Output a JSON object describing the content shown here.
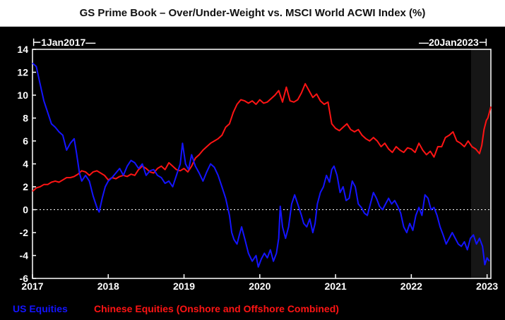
{
  "chart_data": {
    "type": "line",
    "title": "GS Prime Book – Over/Under-Weight vs. MSCI World ACWI Index (%)",
    "start_label": "1Jan2017",
    "end_label": "20Jan2023",
    "x_range": [
      2017.0,
      2023.05
    ],
    "x_ticks": [
      "2017",
      "2018",
      "2019",
      "2020",
      "2021",
      "2022",
      "2023"
    ],
    "ylim": [
      -6,
      14
    ],
    "y_ticks": [
      14,
      12,
      10,
      8,
      6,
      4,
      2,
      0,
      -2,
      -4,
      -6
    ],
    "zero_line": "dotted",
    "grid": false,
    "legend_position": "bottom-left",
    "series": [
      {
        "name": "US Equities",
        "color": "#1414ff",
        "points": [
          [
            2017.0,
            12.8
          ],
          [
            2017.05,
            12.5
          ],
          [
            2017.1,
            11.0
          ],
          [
            2017.15,
            9.5
          ],
          [
            2017.2,
            8.5
          ],
          [
            2017.25,
            7.5
          ],
          [
            2017.3,
            7.2
          ],
          [
            2017.35,
            6.8
          ],
          [
            2017.4,
            6.5
          ],
          [
            2017.45,
            5.2
          ],
          [
            2017.5,
            5.8
          ],
          [
            2017.55,
            6.2
          ],
          [
            2017.58,
            5.0
          ],
          [
            2017.62,
            3.2
          ],
          [
            2017.65,
            2.5
          ],
          [
            2017.7,
            3.0
          ],
          [
            2017.75,
            2.5
          ],
          [
            2017.8,
            1.2
          ],
          [
            2017.85,
            0.2
          ],
          [
            2017.88,
            -0.2
          ],
          [
            2017.92,
            1.0
          ],
          [
            2017.96,
            2.0
          ],
          [
            2018.0,
            2.5
          ],
          [
            2018.05,
            2.8
          ],
          [
            2018.1,
            3.2
          ],
          [
            2018.15,
            3.6
          ],
          [
            2018.2,
            3.0
          ],
          [
            2018.25,
            3.8
          ],
          [
            2018.3,
            4.3
          ],
          [
            2018.35,
            4.1
          ],
          [
            2018.4,
            3.6
          ],
          [
            2018.45,
            4.0
          ],
          [
            2018.5,
            3.0
          ],
          [
            2018.55,
            3.4
          ],
          [
            2018.6,
            3.5
          ],
          [
            2018.65,
            3.0
          ],
          [
            2018.7,
            2.8
          ],
          [
            2018.75,
            2.3
          ],
          [
            2018.8,
            2.5
          ],
          [
            2018.85,
            2.0
          ],
          [
            2018.9,
            3.0
          ],
          [
            2018.95,
            4.0
          ],
          [
            2018.98,
            5.8
          ],
          [
            2019.02,
            4.0
          ],
          [
            2019.06,
            3.5
          ],
          [
            2019.1,
            4.8
          ],
          [
            2019.15,
            3.8
          ],
          [
            2019.2,
            3.2
          ],
          [
            2019.25,
            2.5
          ],
          [
            2019.3,
            3.3
          ],
          [
            2019.35,
            4.0
          ],
          [
            2019.4,
            3.7
          ],
          [
            2019.45,
            3.0
          ],
          [
            2019.5,
            2.0
          ],
          [
            2019.55,
            1.0
          ],
          [
            2019.6,
            -0.5
          ],
          [
            2019.63,
            -2.0
          ],
          [
            2019.66,
            -2.6
          ],
          [
            2019.7,
            -3.0
          ],
          [
            2019.73,
            -2.2
          ],
          [
            2019.76,
            -1.5
          ],
          [
            2019.8,
            -2.5
          ],
          [
            2019.85,
            -3.8
          ],
          [
            2019.9,
            -4.5
          ],
          [
            2019.95,
            -4.0
          ],
          [
            2019.98,
            -5.0
          ],
          [
            2020.02,
            -4.3
          ],
          [
            2020.06,
            -3.8
          ],
          [
            2020.1,
            -4.2
          ],
          [
            2020.14,
            -3.5
          ],
          [
            2020.18,
            -4.5
          ],
          [
            2020.22,
            -3.8
          ],
          [
            2020.25,
            -2.5
          ],
          [
            2020.27,
            0.3
          ],
          [
            2020.3,
            -1.5
          ],
          [
            2020.34,
            -2.5
          ],
          [
            2020.38,
            -1.5
          ],
          [
            2020.42,
            0.5
          ],
          [
            2020.46,
            1.3
          ],
          [
            2020.5,
            0.5
          ],
          [
            2020.55,
            -0.5
          ],
          [
            2020.58,
            -1.2
          ],
          [
            2020.62,
            -1.5
          ],
          [
            2020.66,
            -0.8
          ],
          [
            2020.7,
            -2.0
          ],
          [
            2020.73,
            -1.2
          ],
          [
            2020.76,
            0.5
          ],
          [
            2020.8,
            1.5
          ],
          [
            2020.84,
            2.0
          ],
          [
            2020.88,
            3.0
          ],
          [
            2020.92,
            2.4
          ],
          [
            2020.95,
            3.5
          ],
          [
            2020.98,
            3.8
          ],
          [
            2021.02,
            3.0
          ],
          [
            2021.06,
            1.5
          ],
          [
            2021.1,
            2.0
          ],
          [
            2021.14,
            0.8
          ],
          [
            2021.18,
            1.0
          ],
          [
            2021.22,
            2.5
          ],
          [
            2021.26,
            2.0
          ],
          [
            2021.3,
            0.5
          ],
          [
            2021.34,
            0.2
          ],
          [
            2021.38,
            -0.3
          ],
          [
            2021.42,
            -0.5
          ],
          [
            2021.46,
            0.5
          ],
          [
            2021.5,
            1.5
          ],
          [
            2021.54,
            1.0
          ],
          [
            2021.58,
            0.3
          ],
          [
            2021.62,
            0.0
          ],
          [
            2021.66,
            0.5
          ],
          [
            2021.7,
            1.0
          ],
          [
            2021.74,
            0.5
          ],
          [
            2021.78,
            0.8
          ],
          [
            2021.82,
            0.3
          ],
          [
            2021.86,
            -0.3
          ],
          [
            2021.9,
            -1.5
          ],
          [
            2021.94,
            -2.0
          ],
          [
            2021.98,
            -1.2
          ],
          [
            2022.02,
            -1.8
          ],
          [
            2022.06,
            -0.5
          ],
          [
            2022.1,
            0.2
          ],
          [
            2022.14,
            -0.5
          ],
          [
            2022.18,
            1.3
          ],
          [
            2022.22,
            1.0
          ],
          [
            2022.26,
            0.0
          ],
          [
            2022.3,
            0.2
          ],
          [
            2022.34,
            -0.5
          ],
          [
            2022.38,
            -1.5
          ],
          [
            2022.42,
            -2.2
          ],
          [
            2022.46,
            -3.0
          ],
          [
            2022.5,
            -2.5
          ],
          [
            2022.54,
            -2.0
          ],
          [
            2022.58,
            -2.5
          ],
          [
            2022.62,
            -3.0
          ],
          [
            2022.66,
            -3.2
          ],
          [
            2022.7,
            -2.8
          ],
          [
            2022.74,
            -3.5
          ],
          [
            2022.78,
            -2.5
          ],
          [
            2022.82,
            -2.2
          ],
          [
            2022.86,
            -3.0
          ],
          [
            2022.9,
            -2.5
          ],
          [
            2022.94,
            -3.2
          ],
          [
            2022.97,
            -4.8
          ],
          [
            2023.0,
            -4.2
          ],
          [
            2023.03,
            -4.5
          ]
        ]
      },
      {
        "name": "Chinese Equities (Onshore and Offshore Combined)",
        "color": "#ff1414",
        "points": [
          [
            2017.0,
            1.6
          ],
          [
            2017.05,
            1.9
          ],
          [
            2017.1,
            2.0
          ],
          [
            2017.15,
            2.2
          ],
          [
            2017.2,
            2.2
          ],
          [
            2017.25,
            2.4
          ],
          [
            2017.3,
            2.5
          ],
          [
            2017.35,
            2.4
          ],
          [
            2017.4,
            2.6
          ],
          [
            2017.45,
            2.8
          ],
          [
            2017.5,
            2.8
          ],
          [
            2017.55,
            2.9
          ],
          [
            2017.6,
            3.1
          ],
          [
            2017.65,
            3.4
          ],
          [
            2017.7,
            3.3
          ],
          [
            2017.75,
            3.0
          ],
          [
            2017.8,
            3.3
          ],
          [
            2017.85,
            3.4
          ],
          [
            2017.9,
            3.2
          ],
          [
            2017.95,
            3.0
          ],
          [
            2018.0,
            2.6
          ],
          [
            2018.05,
            2.8
          ],
          [
            2018.1,
            2.7
          ],
          [
            2018.15,
            2.9
          ],
          [
            2018.2,
            3.0
          ],
          [
            2018.25,
            2.9
          ],
          [
            2018.3,
            3.1
          ],
          [
            2018.35,
            3.0
          ],
          [
            2018.4,
            3.5
          ],
          [
            2018.45,
            3.8
          ],
          [
            2018.5,
            3.6
          ],
          [
            2018.55,
            3.3
          ],
          [
            2018.6,
            3.2
          ],
          [
            2018.65,
            3.6
          ],
          [
            2018.7,
            3.8
          ],
          [
            2018.75,
            3.5
          ],
          [
            2018.8,
            4.1
          ],
          [
            2018.85,
            3.8
          ],
          [
            2018.9,
            3.5
          ],
          [
            2018.95,
            3.4
          ],
          [
            2019.0,
            3.6
          ],
          [
            2019.05,
            3.3
          ],
          [
            2019.1,
            3.8
          ],
          [
            2019.15,
            4.5
          ],
          [
            2019.2,
            4.8
          ],
          [
            2019.25,
            5.2
          ],
          [
            2019.3,
            5.5
          ],
          [
            2019.35,
            5.8
          ],
          [
            2019.4,
            6.0
          ],
          [
            2019.45,
            6.2
          ],
          [
            2019.5,
            6.5
          ],
          [
            2019.55,
            7.2
          ],
          [
            2019.6,
            7.5
          ],
          [
            2019.65,
            8.5
          ],
          [
            2019.7,
            9.2
          ],
          [
            2019.75,
            9.6
          ],
          [
            2019.8,
            9.5
          ],
          [
            2019.85,
            9.3
          ],
          [
            2019.9,
            9.5
          ],
          [
            2019.95,
            9.2
          ],
          [
            2020.0,
            9.6
          ],
          [
            2020.05,
            9.3
          ],
          [
            2020.1,
            9.4
          ],
          [
            2020.15,
            9.7
          ],
          [
            2020.2,
            10.0
          ],
          [
            2020.25,
            10.4
          ],
          [
            2020.3,
            9.4
          ],
          [
            2020.35,
            10.7
          ],
          [
            2020.4,
            9.5
          ],
          [
            2020.45,
            9.4
          ],
          [
            2020.5,
            9.6
          ],
          [
            2020.55,
            10.2
          ],
          [
            2020.6,
            11.0
          ],
          [
            2020.65,
            10.4
          ],
          [
            2020.7,
            9.8
          ],
          [
            2020.75,
            10.1
          ],
          [
            2020.8,
            9.5
          ],
          [
            2020.85,
            9.2
          ],
          [
            2020.9,
            9.4
          ],
          [
            2020.95,
            7.5
          ],
          [
            2021.0,
            7.1
          ],
          [
            2021.05,
            6.9
          ],
          [
            2021.1,
            7.2
          ],
          [
            2021.15,
            7.5
          ],
          [
            2021.2,
            7.0
          ],
          [
            2021.25,
            6.8
          ],
          [
            2021.3,
            7.0
          ],
          [
            2021.35,
            6.5
          ],
          [
            2021.4,
            6.2
          ],
          [
            2021.45,
            6.0
          ],
          [
            2021.5,
            6.3
          ],
          [
            2021.55,
            6.0
          ],
          [
            2021.6,
            5.5
          ],
          [
            2021.65,
            5.8
          ],
          [
            2021.7,
            5.3
          ],
          [
            2021.75,
            5.0
          ],
          [
            2021.8,
            5.5
          ],
          [
            2021.85,
            5.2
          ],
          [
            2021.9,
            5.0
          ],
          [
            2021.95,
            5.4
          ],
          [
            2022.0,
            5.3
          ],
          [
            2022.05,
            5.0
          ],
          [
            2022.1,
            5.8
          ],
          [
            2022.15,
            5.2
          ],
          [
            2022.2,
            4.8
          ],
          [
            2022.25,
            5.1
          ],
          [
            2022.3,
            4.6
          ],
          [
            2022.35,
            5.5
          ],
          [
            2022.4,
            5.5
          ],
          [
            2022.45,
            6.3
          ],
          [
            2022.5,
            6.5
          ],
          [
            2022.55,
            6.8
          ],
          [
            2022.6,
            6.0
          ],
          [
            2022.65,
            5.8
          ],
          [
            2022.7,
            5.5
          ],
          [
            2022.75,
            6.0
          ],
          [
            2022.8,
            5.5
          ],
          [
            2022.85,
            5.3
          ],
          [
            2022.9,
            4.9
          ],
          [
            2022.93,
            5.6
          ],
          [
            2022.96,
            7.0
          ],
          [
            2022.99,
            7.8
          ],
          [
            2023.01,
            8.0
          ],
          [
            2023.03,
            8.5
          ],
          [
            2023.05,
            9.0
          ]
        ]
      }
    ]
  }
}
